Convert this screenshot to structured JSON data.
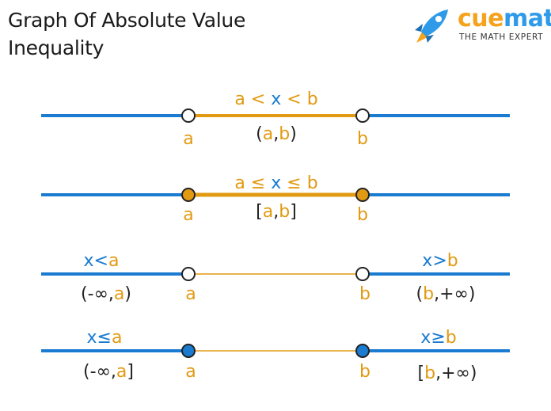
{
  "title": {
    "line1": "Graph Of Absolute Value",
    "line2": "Inequality"
  },
  "logo": {
    "brand": "cuemath",
    "tagline": "THE MATH EXPERT",
    "icon": "rocket-icon"
  },
  "colors": {
    "blue": "#1a7bd0",
    "orange": "#e29a12",
    "dark": "#222222",
    "brand_orange": "#f6a21d",
    "brand_blue": "#2f9be8"
  },
  "rows": [
    {
      "top": "a < x < b",
      "bottom": "(a,b)",
      "a": "a",
      "b": "b",
      "a_filled": false,
      "b_filled": false
    },
    {
      "top": "a ≤ x ≤ b",
      "bottom": "[a,b]",
      "a": "a",
      "b": "b",
      "a_filled": true,
      "b_filled": true
    },
    {
      "left_top": "x<a",
      "left_bottom": "(-∞,a)",
      "right_top": "x>b",
      "right_bottom": "(b,+∞)",
      "a": "a",
      "b": "b",
      "a_filled": false,
      "b_filled": false
    },
    {
      "left_top": "x≤a",
      "left_bottom": "(-∞,a]",
      "right_top": "x≥b",
      "right_bottom": "[b,+∞)",
      "a": "a",
      "b": "b",
      "a_filled": true,
      "b_filled": true
    }
  ]
}
